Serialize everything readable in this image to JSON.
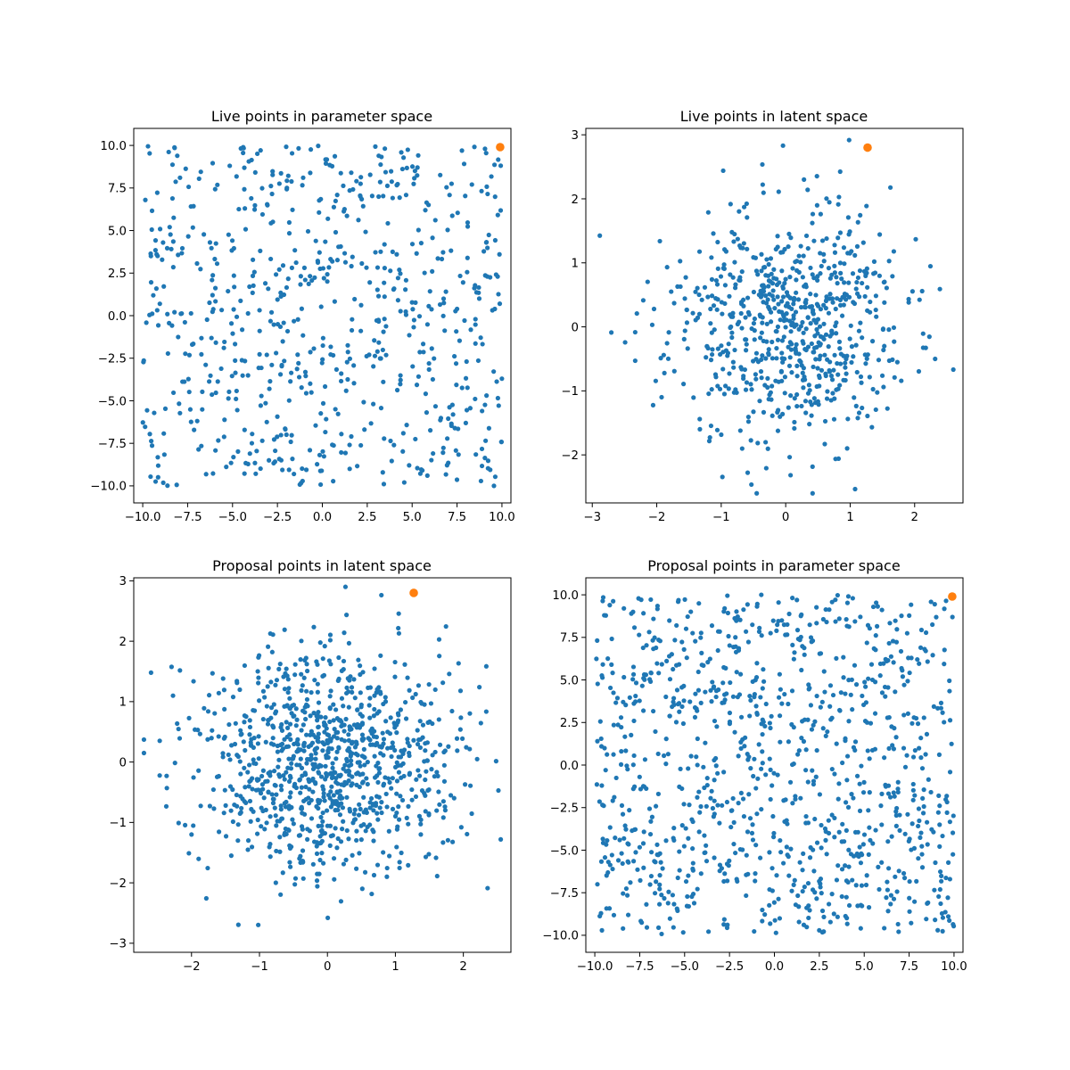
{
  "figure": {
    "background": "#ffffff",
    "point_color": "#1f77b4",
    "highlight_color": "#ff7f0e"
  },
  "chart_data": [
    {
      "type": "scatter",
      "title": "Live points in parameter space",
      "xlim": [
        -10.5,
        10.5
      ],
      "ylim": [
        -11.0,
        11.0
      ],
      "xticks": [
        -10.0,
        -7.5,
        -5.0,
        -2.5,
        0.0,
        2.5,
        5.0,
        7.5,
        10.0
      ],
      "xtick_labels": [
        "−10.0",
        "−7.5",
        "−5.0",
        "−2.5",
        "0.0",
        "2.5",
        "5.0",
        "7.5",
        "10.0"
      ],
      "yticks": [
        -10.0,
        -7.5,
        -5.0,
        -2.5,
        0.0,
        2.5,
        5.0,
        7.5,
        10.0
      ],
      "ytick_labels": [
        "−10.0",
        "−7.5",
        "−5.0",
        "−2.5",
        "0.0",
        "2.5",
        "5.0",
        "7.5",
        "10.0"
      ],
      "distribution": "uniform",
      "n_points": 700,
      "seed": 11,
      "highlight_point": {
        "x": 9.9,
        "y": 9.9
      }
    },
    {
      "type": "scatter",
      "title": "Live points in latent space",
      "xlim": [
        -3.1,
        2.75
      ],
      "ylim": [
        -2.75,
        3.1
      ],
      "xticks": [
        -3,
        -2,
        -1,
        0,
        1,
        2
      ],
      "xtick_labels": [
        "−3",
        "−2",
        "−1",
        "0",
        "1",
        "2"
      ],
      "yticks": [
        -2,
        -1,
        0,
        1,
        2,
        3
      ],
      "ytick_labels": [
        "−2",
        "−1",
        "0",
        "1",
        "2",
        "3"
      ],
      "distribution": "gaussian",
      "n_points": 700,
      "seed": 23,
      "highlight_point": {
        "x": 1.27,
        "y": 2.8
      }
    },
    {
      "type": "scatter",
      "title": "Proposal points in latent space",
      "xlim": [
        -2.85,
        2.7
      ],
      "ylim": [
        -3.15,
        3.05
      ],
      "xticks": [
        -2,
        -1,
        0,
        1,
        2
      ],
      "xtick_labels": [
        "−2",
        "−1",
        "0",
        "1",
        "2"
      ],
      "yticks": [
        -3,
        -2,
        -1,
        0,
        1,
        2,
        3
      ],
      "ytick_labels": [
        "−3",
        "−2",
        "−1",
        "0",
        "1",
        "2",
        "3"
      ],
      "distribution": "gaussian",
      "n_points": 1000,
      "seed": 37,
      "highlight_point": {
        "x": 1.27,
        "y": 2.8
      }
    },
    {
      "type": "scatter",
      "title": "Proposal points in parameter space",
      "xlim": [
        -10.5,
        10.5
      ],
      "ylim": [
        -11.0,
        11.0
      ],
      "xticks": [
        -10.0,
        -7.5,
        -5.0,
        -2.5,
        0.0,
        2.5,
        5.0,
        7.5,
        10.0
      ],
      "xtick_labels": [
        "−10.0",
        "−7.5",
        "−5.0",
        "−2.5",
        "0.0",
        "2.5",
        "5.0",
        "7.5",
        "10.0"
      ],
      "yticks": [
        -10.0,
        -7.5,
        -5.0,
        -2.5,
        0.0,
        2.5,
        5.0,
        7.5,
        10.0
      ],
      "ytick_labels": [
        "−10.0",
        "−7.5",
        "−5.0",
        "−2.5",
        "0.0",
        "2.5",
        "5.0",
        "7.5",
        "10.0"
      ],
      "distribution": "uniform",
      "n_points": 1000,
      "seed": 53,
      "highlight_point": {
        "x": 9.9,
        "y": 9.9
      }
    }
  ]
}
